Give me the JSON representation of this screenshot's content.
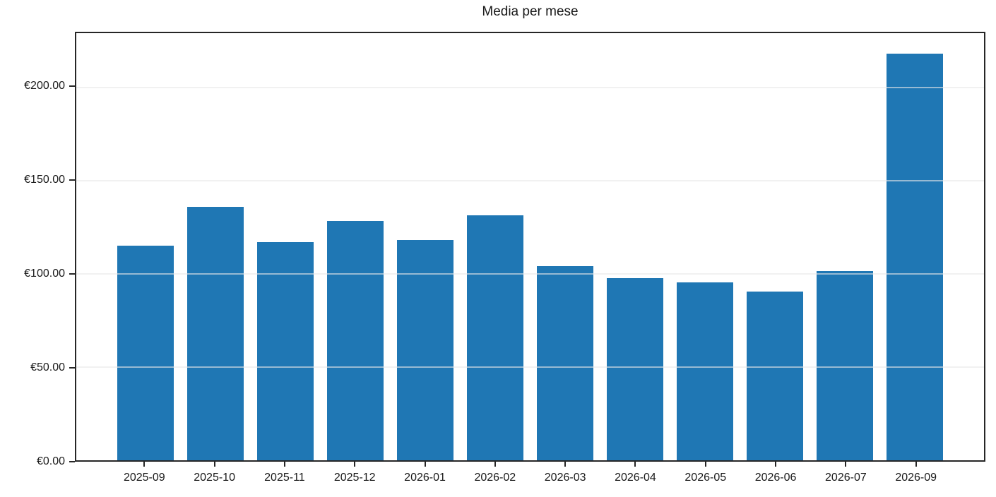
{
  "chart_data": {
    "type": "bar",
    "title": "Media per mese",
    "categories": [
      "2025-09",
      "2025-10",
      "2025-11",
      "2025-12",
      "2026-01",
      "2026-02",
      "2026-03",
      "2026-04",
      "2026-05",
      "2026-06",
      "2026-07",
      "2026-09"
    ],
    "values": [
      115,
      136,
      117,
      128.5,
      118,
      131.5,
      104,
      97.5,
      95.5,
      90.5,
      101.5,
      218
    ],
    "xlabel": "",
    "ylabel": "",
    "currency_prefix": "€",
    "yticks": [
      0,
      50,
      100,
      150,
      200
    ],
    "ytick_labels": [
      "€0.00",
      "€50.00",
      "€100.00",
      "€150.00",
      "€200.00"
    ],
    "ylim": [
      0,
      229
    ],
    "grid": "horizontal",
    "legend": "none",
    "colors": {
      "bar": "#1f77b4",
      "grid": "#e8e8e8",
      "grid_over_bar_alpha": 0.6,
      "spine": "#262626",
      "text": "#1a1a1a",
      "background": "#ffffff"
    }
  }
}
